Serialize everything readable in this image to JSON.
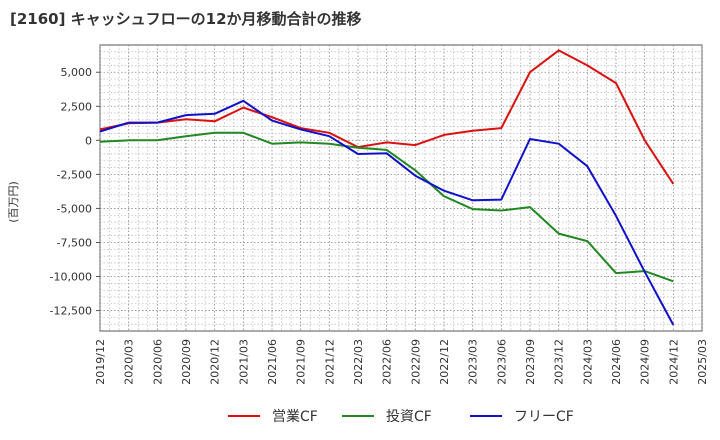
{
  "chart_data": {
    "type": "line",
    "title": "[2160]  キャッシュフローの12か月移動合計の推移",
    "ylabel": "(百万円)",
    "xlabel": "",
    "ylim": [
      -14000,
      7000
    ],
    "yticks": [
      5000,
      2500,
      0,
      -2500,
      -5000,
      -7500,
      -10000,
      -12500
    ],
    "ytick_labels": [
      "5,000",
      "2,500",
      "0",
      "-2,500",
      "-5,000",
      "-7,500",
      "-10,000",
      "-12,500"
    ],
    "x_ticks": [
      "2019/12",
      "2020/03",
      "2020/06",
      "2020/09",
      "2020/12",
      "2021/03",
      "2021/06",
      "2021/09",
      "2021/12",
      "2022/03",
      "2022/06",
      "2022/09",
      "2022/12",
      "2023/03",
      "2023/06",
      "2023/09",
      "2023/12",
      "2024/03",
      "2024/06",
      "2024/09",
      "2024/12",
      "2025/03"
    ],
    "grid": true,
    "legend_position": "bottom",
    "series": [
      {
        "name": "営業CF",
        "color": "#dd1111",
        "values": [
          800,
          1250,
          1300,
          1550,
          1400,
          2400,
          1700,
          900,
          550,
          -500,
          -150,
          -350,
          400,
          700,
          900,
          5000,
          6600,
          5500,
          4200,
          0,
          -3200,
          null
        ]
      },
      {
        "name": "投資CF",
        "color": "#228822",
        "values": [
          -100,
          0,
          0,
          300,
          550,
          550,
          -250,
          -150,
          -250,
          -550,
          -700,
          -2200,
          -4100,
          -5050,
          -5150,
          -4900,
          -6850,
          -7400,
          -9750,
          -9600,
          -10350,
          null
        ]
      },
      {
        "name": "フリーCF",
        "color": "#1111cc",
        "values": [
          650,
          1300,
          1300,
          1850,
          1950,
          2900,
          1450,
          800,
          300,
          -1000,
          -950,
          -2600,
          -3700,
          -4400,
          -4350,
          100,
          -250,
          -1900,
          -5550,
          -9650,
          -13550,
          null
        ]
      }
    ]
  }
}
